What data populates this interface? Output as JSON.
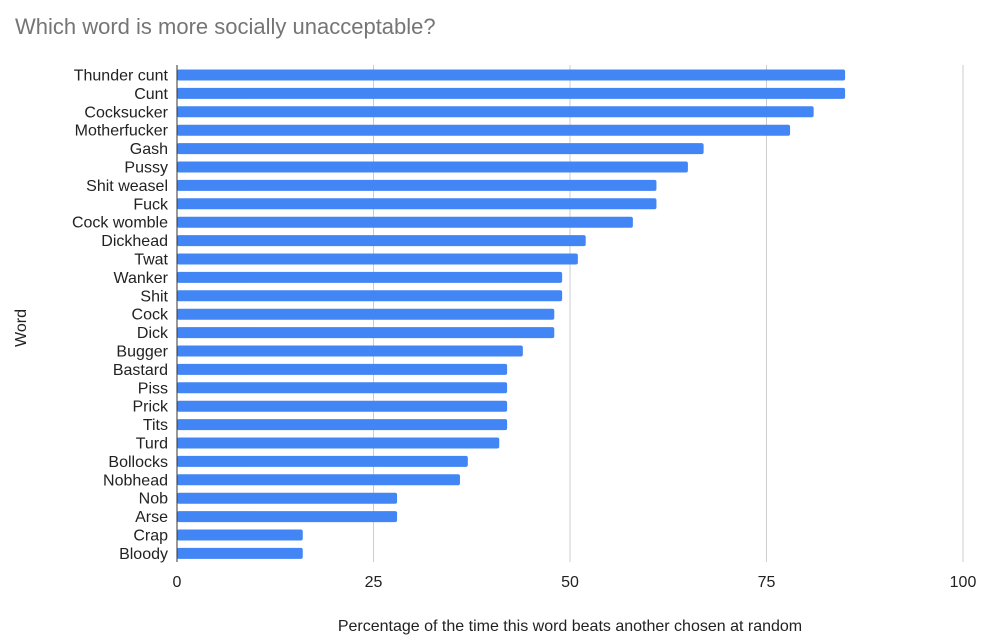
{
  "chart_data": {
    "type": "bar",
    "orientation": "horizontal",
    "title": "Which word is more socially unacceptable?",
    "xlabel": "Percentage of the time this word beats another chosen at random",
    "ylabel": "Word",
    "xlim": [
      0,
      100
    ],
    "x_ticks": [
      0,
      25,
      50,
      75,
      100
    ],
    "grid": true,
    "bar_color": "#4285f4",
    "categories": [
      "Thunder cunt",
      "Cunt",
      "Cocksucker",
      "Motherfucker",
      "Gash",
      "Pussy",
      "Shit weasel",
      "Fuck",
      "Cock womble",
      "Dickhead",
      "Twat",
      "Wanker",
      "Shit",
      "Cock",
      "Dick",
      "Bugger",
      "Bastard",
      "Piss",
      "Prick",
      "Tits",
      "Turd",
      "Bollocks",
      "Nobhead",
      "Nob",
      "Arse",
      "Crap",
      "Bloody"
    ],
    "values": [
      85,
      85,
      81,
      78,
      67,
      65,
      61,
      61,
      58,
      52,
      51,
      49,
      49,
      48,
      48,
      44,
      42,
      42,
      42,
      42,
      41,
      37,
      36,
      28,
      28,
      16,
      16
    ]
  }
}
